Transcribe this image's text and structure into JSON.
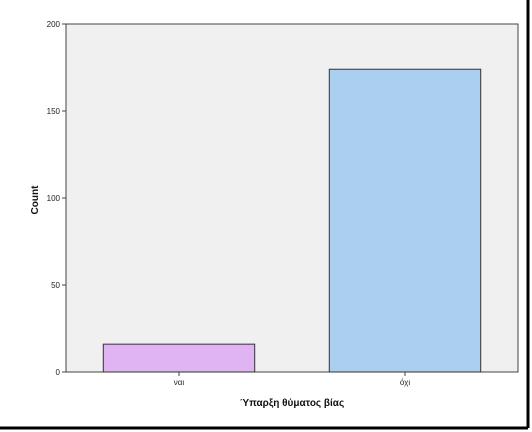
{
  "chart_data": {
    "type": "bar",
    "title": "",
    "xlabel": "Ύπαρξη θύματος βίας",
    "ylabel": "Count",
    "categories": [
      "ναι",
      "όχι"
    ],
    "values": [
      16,
      174
    ],
    "ylim": [
      0,
      200
    ],
    "yticks": [
      0,
      50,
      100,
      150,
      200
    ],
    "grid": false,
    "legend": "none",
    "colors": {
      "plot_background": "#f0f0f0",
      "bars": [
        "#e0b4f2",
        "#abcfee"
      ],
      "bar_outline": "#333333",
      "frame": "#000000"
    }
  }
}
